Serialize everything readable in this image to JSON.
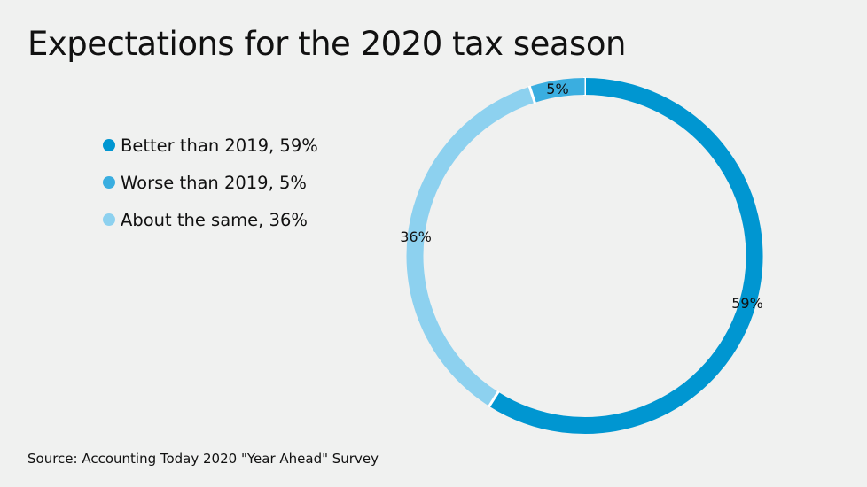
{
  "title": "Expectations for the 2020 tax season",
  "source": "Source: Accounting Today 2020 \"Year Ahead\" Survey",
  "chart_data": {
    "type": "pie",
    "variant": "donut",
    "title": "Expectations for the 2020 tax season",
    "legend_position": "left",
    "slices": [
      {
        "name": "Better than 2019",
        "value": 59,
        "label": "59%",
        "legend": "Better than 2019, 59%",
        "color": "#0096d1"
      },
      {
        "name": "About the same",
        "value": 36,
        "label": "36%",
        "legend": "About the same, 36%",
        "color": "#8dd1ef"
      },
      {
        "name": "Worse than 2019",
        "value": 5,
        "label": "5%",
        "legend": "Worse than 2019, 5%",
        "color": "#3aaee0"
      }
    ],
    "legend_order": [
      0,
      2,
      1
    ]
  }
}
